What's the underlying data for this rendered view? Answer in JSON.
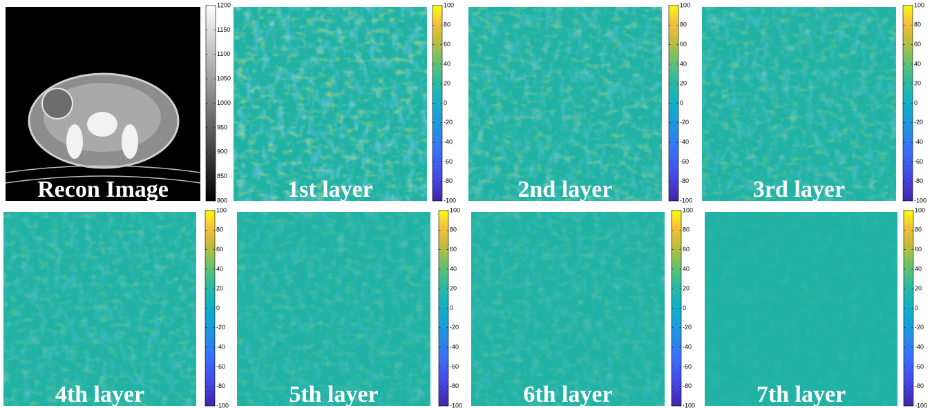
{
  "panels": [
    {
      "label": "Recon Image",
      "colorbar_ticks": [
        800,
        850,
        900,
        950,
        1000,
        1050,
        1100,
        1150,
        1200
      ]
    },
    {
      "label": "1st layer",
      "colorbar_ticks": [
        -100,
        -80,
        -60,
        -40,
        -20,
        0,
        20,
        40,
        60,
        80,
        100
      ]
    },
    {
      "label": "2nd layer",
      "colorbar_ticks": [
        -100,
        -80,
        -60,
        -40,
        -20,
        0,
        20,
        40,
        60,
        80,
        100
      ]
    },
    {
      "label": "3rd layer",
      "colorbar_ticks": [
        -100,
        -80,
        -60,
        -40,
        -20,
        0,
        20,
        40,
        60,
        80,
        100
      ]
    },
    {
      "label": "4th layer",
      "colorbar_ticks": [
        -100,
        -80,
        -60,
        -40,
        -20,
        0,
        20,
        40,
        60,
        80,
        100
      ]
    },
    {
      "label": "5th layer",
      "colorbar_ticks": [
        -100,
        -80,
        -60,
        -40,
        -20,
        0,
        20,
        40,
        60,
        80,
        100
      ]
    },
    {
      "label": "6th layer",
      "colorbar_ticks": [
        -100,
        -80,
        -60,
        -40,
        -20,
        0,
        20,
        40,
        60,
        80,
        100
      ]
    },
    {
      "label": "7th layer",
      "colorbar_ticks": [
        -100,
        -80,
        -60,
        -40,
        -20,
        0,
        20,
        40,
        60,
        80,
        100
      ]
    }
  ]
}
